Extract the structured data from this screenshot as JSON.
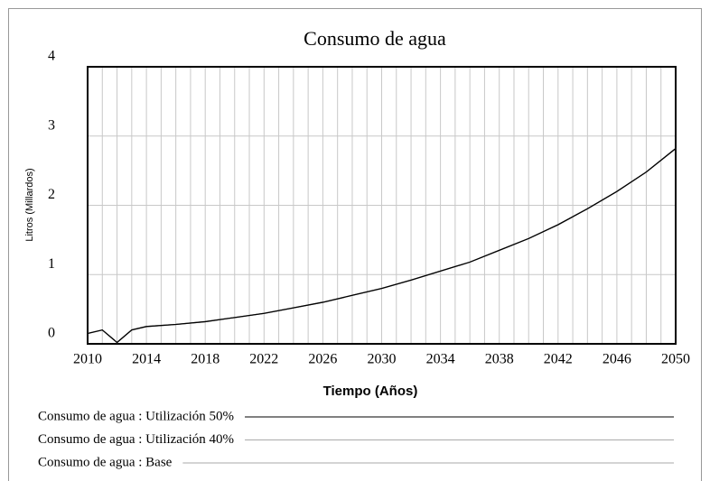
{
  "chart_data": {
    "type": "line",
    "title": "Consumo de agua",
    "xlabel": "Tiempo (Años)",
    "ylabel": "Litros (Millardos)",
    "x": [
      2010,
      2011,
      2012,
      2013,
      2014,
      2016,
      2018,
      2020,
      2022,
      2024,
      2026,
      2028,
      2030,
      2032,
      2034,
      2036,
      2038,
      2040,
      2042,
      2044,
      2046,
      2048,
      2050
    ],
    "series": [
      {
        "name": "Consumo de agua : Utilización 50%",
        "color": "#000000",
        "values": [
          0.15,
          0.2,
          0.02,
          0.2,
          0.25,
          0.28,
          0.32,
          0.38,
          0.44,
          0.52,
          0.6,
          0.7,
          0.8,
          0.92,
          1.05,
          1.18,
          1.35,
          1.52,
          1.72,
          1.95,
          2.2,
          2.48,
          2.82
        ]
      },
      {
        "name": "Consumo de agua : Utilización 40%",
        "color": "#aaaaaa",
        "values": [
          0.15,
          0.2,
          0.02,
          0.2,
          0.25,
          0.28,
          0.32,
          0.38,
          0.44,
          0.52,
          0.6,
          0.7,
          0.8,
          0.92,
          1.05,
          1.18,
          1.35,
          1.52,
          1.72,
          1.95,
          2.2,
          2.48,
          2.82
        ]
      },
      {
        "name": "Consumo de agua : Base",
        "color": "#aaaaaa",
        "values": [
          0.15,
          0.2,
          0.02,
          0.2,
          0.25,
          0.28,
          0.32,
          0.38,
          0.44,
          0.52,
          0.6,
          0.7,
          0.8,
          0.92,
          1.05,
          1.18,
          1.35,
          1.52,
          1.72,
          1.95,
          2.2,
          2.48,
          2.82
        ]
      }
    ],
    "xlim": [
      2010,
      2050
    ],
    "xticks": [
      2010,
      2014,
      2018,
      2022,
      2026,
      2030,
      2034,
      2038,
      2042,
      2046,
      2050
    ],
    "xgrid": [
      2011,
      2012,
      2013,
      2015,
      2016,
      2017,
      2019,
      2020,
      2021,
      2023,
      2024,
      2025,
      2027,
      2028,
      2029,
      2031,
      2032,
      2033,
      2035,
      2036,
      2037,
      2039,
      2040,
      2041,
      2043,
      2044,
      2045,
      2047,
      2048,
      2049
    ],
    "ylim": [
      0,
      4
    ],
    "yticks": [
      0,
      1,
      2,
      3,
      4
    ],
    "grid": true
  }
}
